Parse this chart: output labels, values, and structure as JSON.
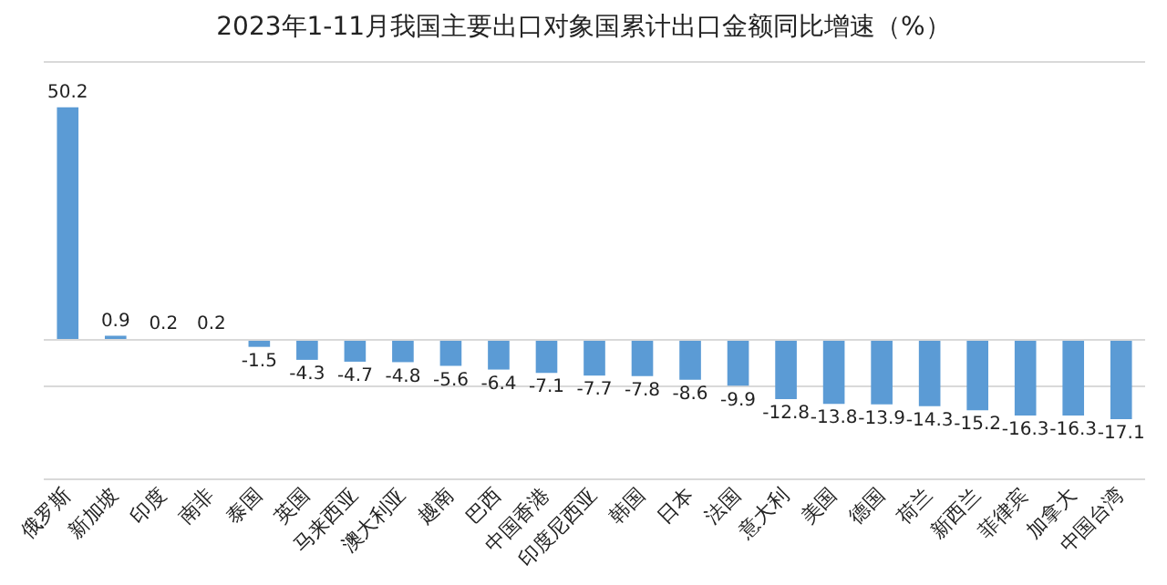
{
  "chart_data": {
    "type": "bar",
    "title": "2023年1-11月我国主要出口对象国累计出口金额同比增速（%）",
    "categories": [
      "俄罗斯",
      "新加坡",
      "印度",
      "南非",
      "泰国",
      "英国",
      "马来西亚",
      "澳大利亚",
      "越南",
      "巴西",
      "中国香港",
      "印度尼西亚",
      "韩国",
      "日本",
      "法国",
      "意大利",
      "美国",
      "德国",
      "荷兰",
      "新西兰",
      "菲律宾",
      "加拿大",
      "中国台湾"
    ],
    "values": [
      50.2,
      0.9,
      0.2,
      0.2,
      -1.5,
      -4.3,
      -4.7,
      -4.8,
      -5.6,
      -6.4,
      -7.1,
      -7.7,
      -7.8,
      -8.6,
      -9.9,
      -12.8,
      -13.8,
      -13.9,
      -14.3,
      -15.2,
      -16.3,
      -16.3,
      -17.1
    ],
    "color": "#5b9bd5",
    "ylim": [
      -30,
      60
    ],
    "yticks": [
      {
        "value": -30,
        "label": null
      },
      {
        "value": -10,
        "label": null
      },
      {
        "value": 60,
        "label": null
      }
    ],
    "grid": "y",
    "tick_labels": "x",
    "data_labels": true,
    "legend": false
  }
}
